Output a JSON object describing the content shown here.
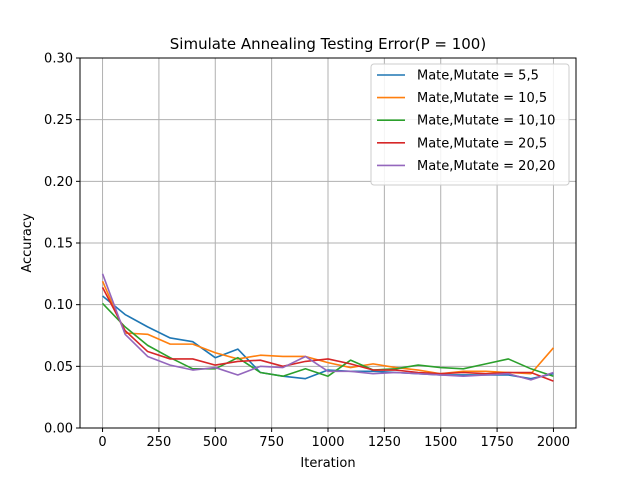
{
  "chart_data": {
    "type": "line",
    "title": "Simulate Annealing Testing Error(P = 100)",
    "xlabel": "Iteration",
    "ylabel": "Accuracy",
    "xlim": [
      -100,
      2100
    ],
    "ylim": [
      0.0,
      0.3
    ],
    "xticks": [
      0,
      250,
      500,
      750,
      1000,
      1250,
      1500,
      1750,
      2000
    ],
    "yticks": [
      0.0,
      0.05,
      0.1,
      0.15,
      0.2,
      0.25,
      0.3
    ],
    "xtick_labels": [
      "0",
      "250",
      "500",
      "750",
      "1000",
      "1250",
      "1500",
      "1750",
      "2000"
    ],
    "ytick_labels": [
      "0.00",
      "0.05",
      "0.10",
      "0.15",
      "0.20",
      "0.25",
      "0.30"
    ],
    "grid": true,
    "legend_position": "top-right",
    "x": [
      0,
      100,
      200,
      300,
      400,
      500,
      600,
      700,
      800,
      900,
      1000,
      1100,
      1200,
      1300,
      1400,
      1500,
      1600,
      1700,
      1800,
      1900,
      2000
    ],
    "series": [
      {
        "name": "Mate,Mutate = 5,5",
        "color": "#1f77b4",
        "values": [
          0.107,
          0.092,
          0.082,
          0.073,
          0.07,
          0.057,
          0.064,
          0.045,
          0.042,
          0.04,
          0.047,
          0.046,
          0.046,
          0.045,
          0.044,
          0.043,
          0.043,
          0.043,
          0.043,
          0.04,
          0.044
        ]
      },
      {
        "name": "Mate,Mutate = 10,5",
        "color": "#ff7f0e",
        "values": [
          0.119,
          0.077,
          0.076,
          0.068,
          0.068,
          0.061,
          0.056,
          0.059,
          0.058,
          0.058,
          0.053,
          0.049,
          0.052,
          0.049,
          0.047,
          0.044,
          0.046,
          0.046,
          0.045,
          0.044,
          0.065
        ]
      },
      {
        "name": "Mate,Mutate = 10,10",
        "color": "#2ca02c",
        "values": [
          0.101,
          0.082,
          0.067,
          0.057,
          0.048,
          0.048,
          0.057,
          0.045,
          0.042,
          0.048,
          0.042,
          0.055,
          0.047,
          0.048,
          0.051,
          0.049,
          0.048,
          0.052,
          0.056,
          0.048,
          0.042
        ]
      },
      {
        "name": "Mate,Mutate = 20,5",
        "color": "#d62728",
        "values": [
          0.114,
          0.079,
          0.062,
          0.056,
          0.056,
          0.051,
          0.054,
          0.055,
          0.05,
          0.054,
          0.056,
          0.052,
          0.047,
          0.047,
          0.045,
          0.044,
          0.045,
          0.044,
          0.045,
          0.045,
          0.038
        ]
      },
      {
        "name": "Mate,Mutate = 20,20",
        "color": "#9467bd",
        "values": [
          0.125,
          0.076,
          0.058,
          0.051,
          0.047,
          0.049,
          0.043,
          0.05,
          0.049,
          0.058,
          0.046,
          0.046,
          0.044,
          0.045,
          0.044,
          0.043,
          0.042,
          0.043,
          0.044,
          0.039,
          0.045
        ]
      }
    ]
  }
}
